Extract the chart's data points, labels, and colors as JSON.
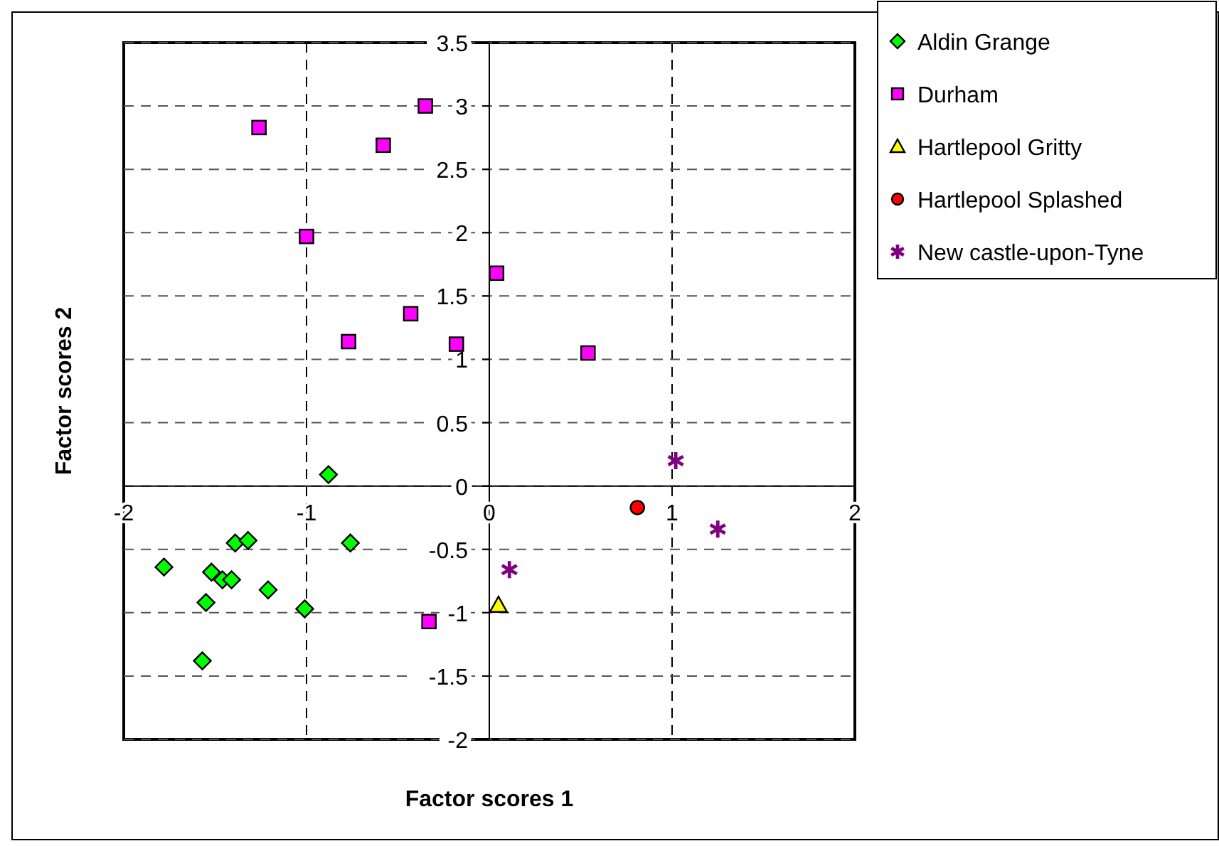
{
  "chart_data": {
    "type": "scatter",
    "xlabel": "Factor scores 1",
    "ylabel": "Factor scores 2",
    "xlim": [
      -2,
      2
    ],
    "ylim": [
      -2,
      3.5
    ],
    "xticks": [
      -2,
      -1,
      0,
      1,
      2
    ],
    "yticks": [
      -2,
      -1.5,
      -1,
      -0.5,
      0,
      0.5,
      1,
      1.5,
      2,
      2.5,
      3,
      3.5
    ],
    "grid": true,
    "legend": "top right",
    "series": [
      {
        "name": "Aldin Grange",
        "color": "#00ff00",
        "marker": "diamond",
        "x": [
          -0.88,
          -0.76,
          -1.39,
          -1.32,
          -1.78,
          -1.52,
          -1.46,
          -1.41,
          -1.21,
          -1.55,
          -1.01,
          -1.57
        ],
        "values": [
          0.09,
          -0.45,
          -0.45,
          -0.43,
          -0.64,
          -0.68,
          -0.74,
          -0.74,
          -0.82,
          -0.92,
          -0.97,
          -1.38
        ]
      },
      {
        "name": "Durham",
        "color": "#ff00ff",
        "marker": "square",
        "x": [
          -1.26,
          -0.35,
          -0.58,
          -1.0,
          0.04,
          -0.43,
          -0.77,
          -0.18,
          0.54,
          -0.33
        ],
        "values": [
          2.83,
          3.0,
          2.69,
          1.97,
          1.68,
          1.36,
          1.14,
          1.12,
          1.05,
          -1.07
        ]
      },
      {
        "name": "Hartlepool Gritty",
        "color": "#ffff00",
        "marker": "triangle",
        "x": [
          0.05
        ],
        "values": [
          -0.94
        ]
      },
      {
        "name": "Hartlepool Splashed",
        "color": "#ff0000",
        "marker": "circle",
        "x": [
          0.81
        ],
        "values": [
          -0.17
        ]
      },
      {
        "name": "New castle-upon-Tyne",
        "color": "#800080",
        "marker": "cross",
        "x": [
          1.02,
          1.25,
          0.11
        ],
        "values": [
          0.2,
          -0.34,
          -0.66
        ]
      }
    ]
  }
}
